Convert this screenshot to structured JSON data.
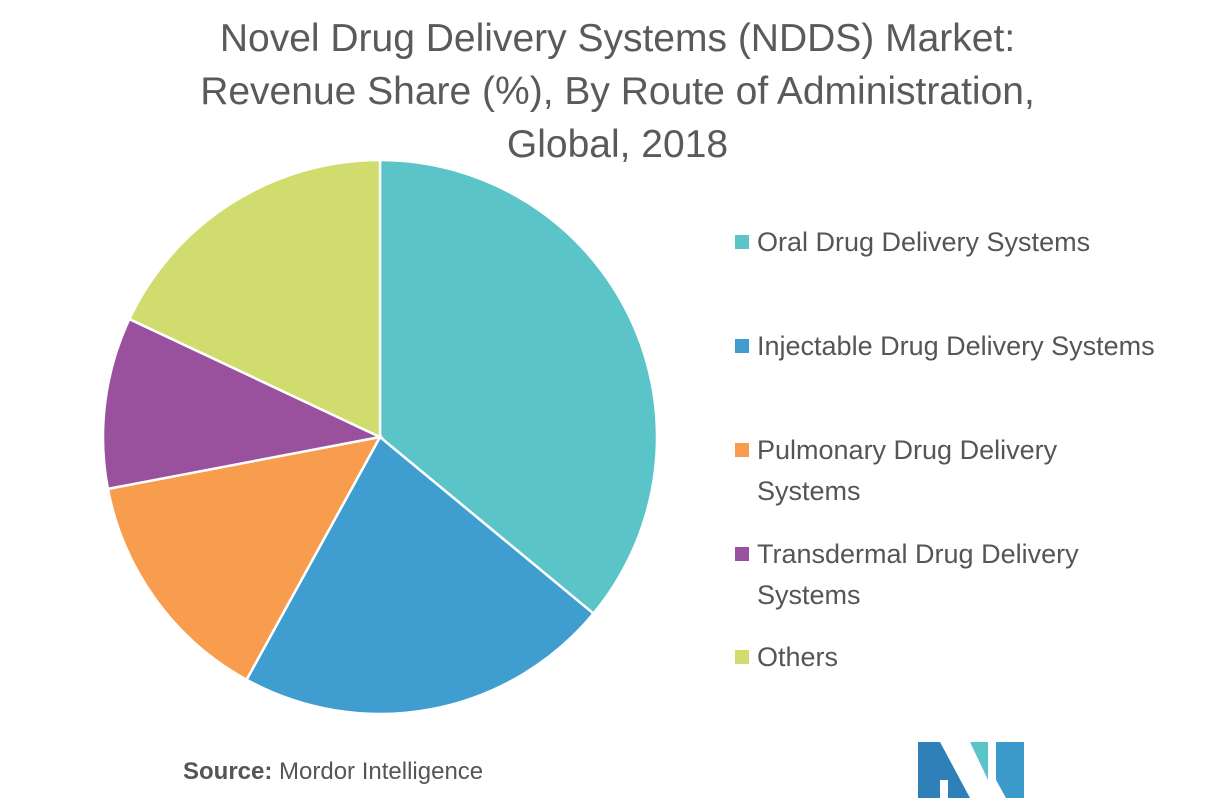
{
  "chart_data": {
    "type": "pie",
    "title_lines": [
      "Novel Drug Delivery Systems (NDDS) Market:",
      "Revenue Share (%), By Route of Administration,",
      "Global, 2018"
    ],
    "legend_position": "right",
    "slices": [
      {
        "label": "Oral Drug Delivery Systems",
        "label_lines": [
          "Oral Drug Delivery Systems"
        ],
        "value": 36,
        "color": "#5BC4C8"
      },
      {
        "label": "Injectable Drug Delivery Systems",
        "label_lines": [
          "Injectable Drug Delivery Systems"
        ],
        "value": 22,
        "color": "#3F9ECF"
      },
      {
        "label": "Pulmonary Drug Delivery Systems",
        "label_lines": [
          "Pulmonary Drug Delivery",
          "Systems"
        ],
        "value": 14,
        "color": "#F89C4E"
      },
      {
        "label": "Transdermal Drug Delivery Systems",
        "label_lines": [
          "Transdermal Drug Delivery",
          "Systems"
        ],
        "value": 10,
        "color": "#9A519D"
      },
      {
        "label": "Others",
        "label_lines": [
          "Others"
        ],
        "value": 18,
        "color": "#D1DC6E"
      }
    ]
  },
  "source": {
    "label": "Source:",
    "text": "Mordor Intelligence"
  },
  "logo": {
    "colors": [
      "#2F7FB8",
      "#5BC4C8",
      "#3D9BCB"
    ]
  }
}
